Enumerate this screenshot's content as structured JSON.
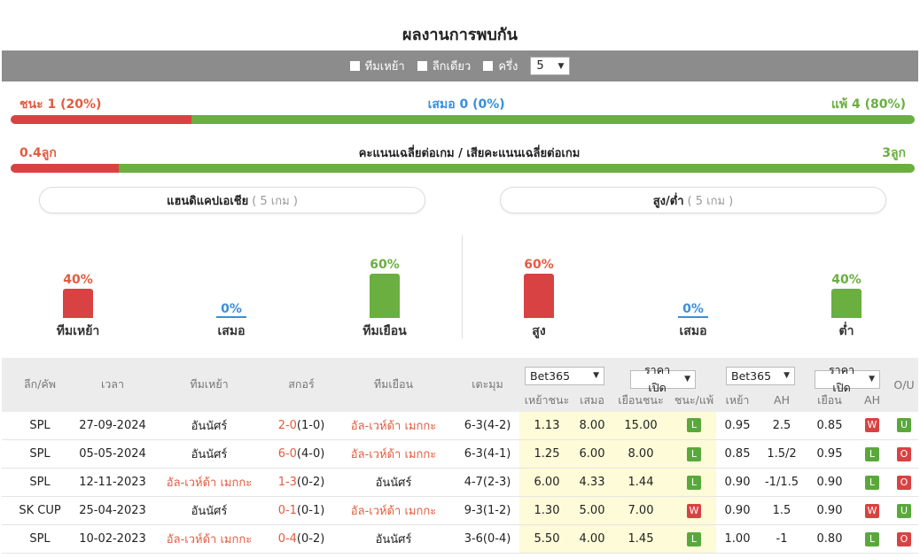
{
  "title": "ผลงานการพบกัน",
  "filters": {
    "home_team": "ทีมเหย้า",
    "same_league": "ลีกเดียว",
    "half": "ครึ่ง",
    "count": "5"
  },
  "wdl": {
    "win": "ชนะ 1 (20%)",
    "draw": "เสมอ 0 (0%)",
    "loss": "แพ้ 4 (80%)",
    "win_fraction": 0.2
  },
  "goals": {
    "left": "0.4ลูก",
    "middle": "คะแนนเฉลี่ยต่อเกม / เสียคะแนนเฉลี่ยต่อเกม",
    "right": "3ลูก",
    "left_fraction": 0.12
  },
  "handicap": {
    "title": "แฮนดิแคปเอเชีย",
    "sub": "( 5 เกม )",
    "items": [
      {
        "pct": "40%",
        "label": "ทีมเหย้า",
        "value": 0.4,
        "color": "#d94242",
        "text_color": "#e35c40"
      },
      {
        "pct": "0%",
        "label": "เสมอ",
        "value": 0,
        "color": "#3a8fd9",
        "text_color": "#3a8fd9"
      },
      {
        "pct": "60%",
        "label": "ทีมเยือน",
        "value": 0.6,
        "color": "#6aaf3f",
        "text_color": "#6aaf3f"
      }
    ]
  },
  "overunder": {
    "title": "สูง/ต่ำ",
    "sub": "( 5 เกม )",
    "items": [
      {
        "pct": "60%",
        "label": "สูง",
        "value": 0.6,
        "color": "#d94242",
        "text_color": "#e35c40"
      },
      {
        "pct": "0%",
        "label": "เสมอ",
        "value": 0,
        "color": "#3a8fd9",
        "text_color": "#3a8fd9"
      },
      {
        "pct": "40%",
        "label": "ต่ำ",
        "value": 0.4,
        "color": "#6aaf3f",
        "text_color": "#6aaf3f"
      }
    ]
  },
  "table": {
    "headers": {
      "league": "ลีก/คัพ",
      "time": "เวลา",
      "home": "ทีมเหย้า",
      "score": "สกอร์",
      "away": "ทีมเยือน",
      "corner": "เตะมุม",
      "book1": "Bet365",
      "price1": "ราคาเปิด",
      "book2": "Bet365",
      "price2": "ราคาเปิด",
      "home_win": "เหย้าชนะ",
      "draw": "เสมอ",
      "away_win": "เยือนชนะ",
      "wl": "ชนะ/แพ้",
      "h": "เหย้า",
      "ah": "AH",
      "a": "เยือน",
      "ah2": "AH",
      "ou": "O/U"
    },
    "rows": [
      {
        "league": "SPL",
        "date": "27-09-2024",
        "home": "อันนัศร์",
        "home_red": false,
        "score_main": "2-0",
        "score_ht": "(1-0)",
        "away": "อัล-เวห์ด้า เมกกะ",
        "away_red": true,
        "corner": "6-3(4-2)",
        "o1": "1.13",
        "o2": "8.00",
        "o3": "15.00",
        "wl": "L",
        "h": "0.95",
        "ah": "2.5",
        "a": "0.85",
        "ahr": "W",
        "ou": "U"
      },
      {
        "league": "SPL",
        "date": "05-05-2024",
        "home": "อันนัศร์",
        "home_red": false,
        "score_main": "6-0",
        "score_ht": "(4-0)",
        "away": "อัล-เวห์ด้า เมกกะ",
        "away_red": true,
        "corner": "6-3(4-1)",
        "o1": "1.25",
        "o2": "6.00",
        "o3": "8.00",
        "wl": "L",
        "h": "0.85",
        "ah": "1.5/2",
        "a": "0.95",
        "ahr": "L",
        "ou": "O"
      },
      {
        "league": "SPL",
        "date": "12-11-2023",
        "home": "อัล-เวห์ด้า เมกกะ",
        "home_red": true,
        "score_main": "1-3",
        "score_ht": "(0-2)",
        "away": "อันนัศร์",
        "away_red": false,
        "corner": "4-7(2-3)",
        "o1": "6.00",
        "o2": "4.33",
        "o3": "1.44",
        "wl": "L",
        "h": "0.90",
        "ah": "-1/1.5",
        "a": "0.90",
        "ahr": "L",
        "ou": "O"
      },
      {
        "league": "SK CUP",
        "date": "25-04-2023",
        "home": "อันนัศร์",
        "home_red": false,
        "score_main": "0-1",
        "score_ht": "(0-1)",
        "away": "อัล-เวห์ด้า เมกกะ",
        "away_red": true,
        "corner": "9-3(1-2)",
        "o1": "1.30",
        "o2": "5.00",
        "o3": "7.00",
        "wl": "W",
        "h": "0.90",
        "ah": "1.5",
        "a": "0.90",
        "ahr": "W",
        "ou": "U"
      },
      {
        "league": "SPL",
        "date": "10-02-2023",
        "home": "อัล-เวห์ด้า เมกกะ",
        "home_red": true,
        "score_main": "0-4",
        "score_ht": "(0-2)",
        "away": "อันนัศร์",
        "away_red": false,
        "corner": "3-6(0-4)",
        "o1": "5.50",
        "o2": "4.00",
        "o3": "1.45",
        "wl": "L",
        "h": "1.00",
        "ah": "-1",
        "a": "0.80",
        "ahr": "L",
        "ou": "O"
      }
    ]
  }
}
